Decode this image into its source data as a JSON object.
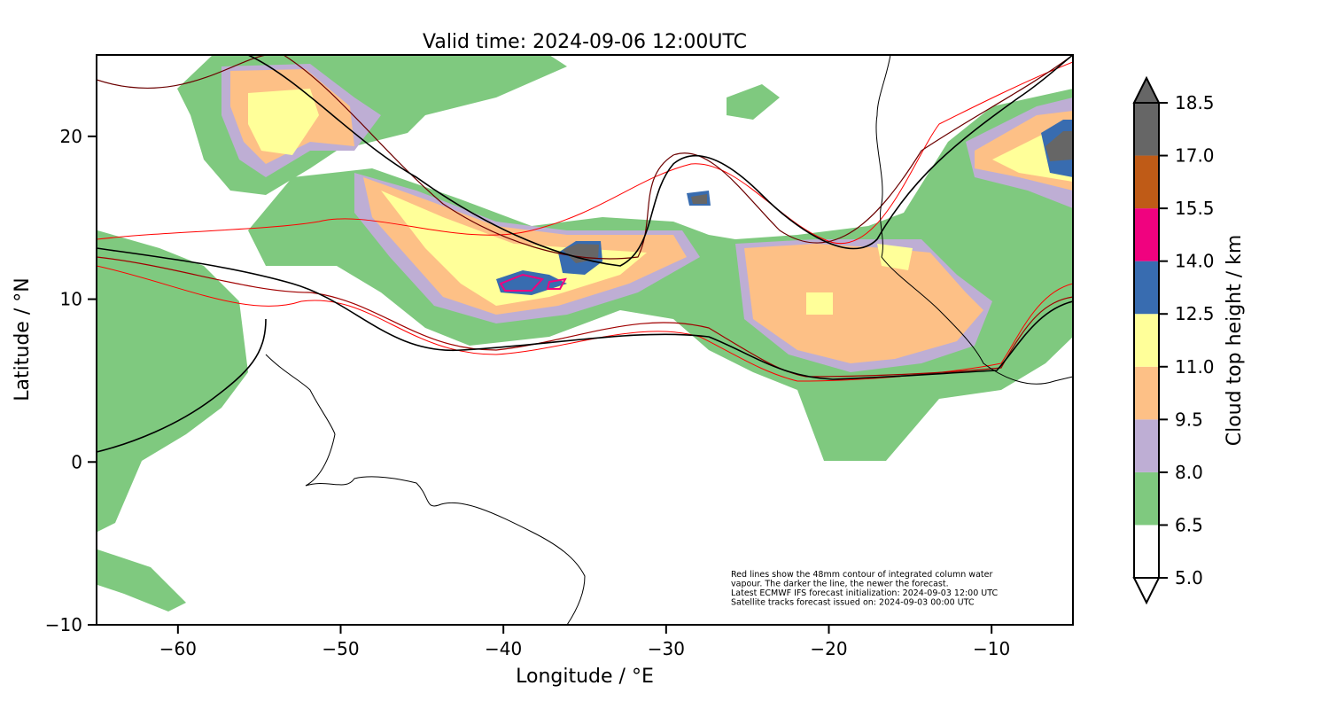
{
  "title": "Valid time: 2024-09-06 12:00UTC",
  "xlabel": "Longitude / °E",
  "ylabel": "Latitude / °N",
  "xticks": [
    {
      "v": -60,
      "label": "−60"
    },
    {
      "v": -50,
      "label": "−50"
    },
    {
      "v": -40,
      "label": "−40"
    },
    {
      "v": -30,
      "label": "−30"
    },
    {
      "v": -20,
      "label": "−20"
    },
    {
      "v": -10,
      "label": "−10"
    }
  ],
  "yticks": [
    {
      "v": 20,
      "label": "20"
    },
    {
      "v": 10,
      "label": "10"
    },
    {
      "v": 0,
      "label": "0"
    },
    {
      "v": -10,
      "label": "−10"
    }
  ],
  "extent": {
    "lon": [
      -65,
      -5
    ],
    "lat": [
      -10,
      25
    ]
  },
  "note": [
    "Red lines show the 48mm contour of integrated column water",
    "vapour. The darker the line, the newer the forecast.",
    "Latest ECMWF IFS forecast initialization: 2024-09-03 12:00 UTC",
    "Satellite tracks forecast issued on: 2024-09-03 00:00 UTC"
  ],
  "colorbar": {
    "label": "Cloud top height / km",
    "bounds": [
      5.0,
      6.5,
      8.0,
      9.5,
      11.0,
      12.5,
      14.0,
      15.5,
      17.0,
      18.5
    ],
    "tick_labels": [
      "5.0",
      "6.5",
      "8.0",
      "9.5",
      "11.0",
      "12.5",
      "14.0",
      "15.5",
      "17.0",
      "18.5"
    ],
    "colors": [
      "#ffffff",
      "#7fc97f",
      "#beaed4",
      "#fdc086",
      "#ffff99",
      "#386cb0",
      "#f0027f",
      "#bf5b17",
      "#666666"
    ],
    "extend": "both"
  }
}
